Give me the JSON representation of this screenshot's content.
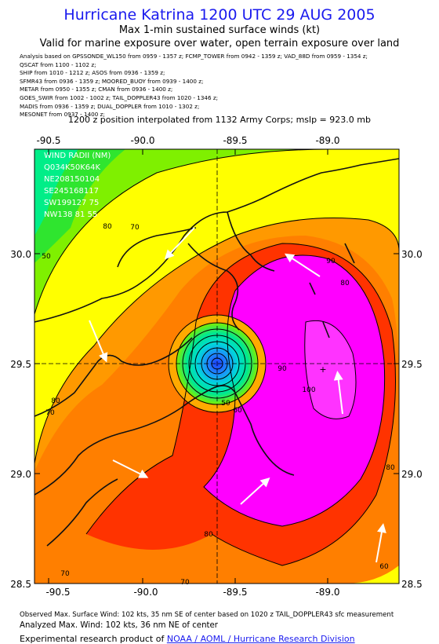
{
  "title": "Hurricane Katrina 1200 UTC 29 AUG 2005",
  "subtitle": "Max 1-min sustained surface winds (kt)",
  "valid_line": "Valid for marine exposure over water, open terrain exposure over land",
  "analysis_lines": [
    "Analysis based on  GPSSONDE_WL150 from 0959 - 1357 z;   FCMP_TOWER from 0942 - 1359 z;   VAD_88D from 0959 - 1354 z;",
    "QSCAT from 1100 - 1102 z;",
    "SHIP from 1010 - 1212 z;   ASOS from 0936 - 1359 z;",
    "SFMR43 from 0936 - 1359 z;   MOORED_BUOY from 0939 - 1400 z;",
    "METAR from 0950 - 1355 z;   CMAN from 0936 - 1400 z;",
    "GOES_SWIR from 1002 - 1002 z;   TAIL_DOPPLER43 from 1020 - 1346 z;",
    "MADIS from 0936 - 1359 z;   DUAL_DOPPLER from 1010 - 1302 z;",
    "MESONET from 0937 - 1400 z;"
  ],
  "position_line": "1200 z position interpolated from 1132 Army Corps; mslp = 923.0 mb",
  "wind_radii": {
    "title": "WIND RADII (NM)",
    "lines": [
      "Q034K50K64K",
      "NE208150104",
      "SE245168117",
      "SW199127 75",
      "NW138 81 55"
    ]
  },
  "map": {
    "lon_ticks": [
      "-90.5",
      "-90.0",
      "-89.5",
      "-89.0"
    ],
    "lat_ticks": [
      "30.0",
      "29.5",
      "29.0",
      "28.5"
    ],
    "contour_labels": [
      "80",
      "70",
      "50",
      "90",
      "100",
      "60",
      "50",
      "90",
      "80",
      "70",
      "60",
      "70",
      "80",
      "70",
      "80",
      "80"
    ],
    "lon_range": [
      -90.6,
      -88.55
    ],
    "lat_range": [
      28.5,
      30.5
    ],
    "center": {
      "lon": -89.55,
      "lat": 29.5
    },
    "colors": {
      "outer_green": "#2fe52f",
      "yellow": "#ffff00",
      "orange": "#ff7f00",
      "red": "#ff2200",
      "magenta": "#ff00ff",
      "cyan": "#00d8d8",
      "blue": "#1e3cff"
    }
  },
  "observed_line": "Observed Max. Surface Wind: 102 kts, 35 nm SE of center based on 1020 z TAIL_DOPPLER43 sfc measurement",
  "analyzed_line": "Analyzed Max. Wind: 102 kts, 36 nm NE of center",
  "credit_prefix": "Experimental research product of ",
  "credit_link": "NOAA / AOML / Hurricane Research Division"
}
